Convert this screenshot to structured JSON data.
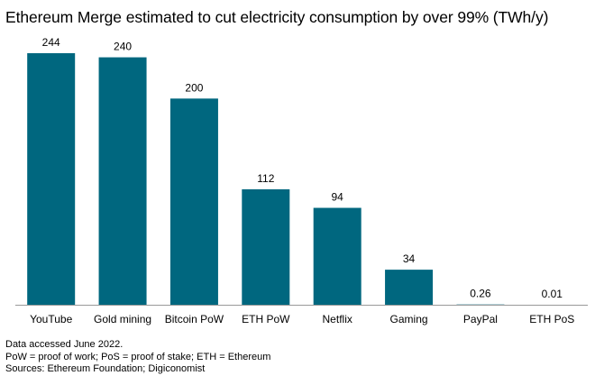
{
  "chart_data": {
    "type": "bar",
    "title": "Ethereum Merge estimated to cut electricity consumption by over 99% (TWh/y)",
    "categories": [
      "YouTube",
      "Gold mining",
      "Bitcoin PoW",
      "ETH PoW",
      "Netflix",
      "Gaming",
      "PayPal",
      "ETH PoS"
    ],
    "values": [
      244,
      240,
      200,
      112,
      94,
      34,
      0.26,
      0.01
    ],
    "data_labels": [
      "244",
      "240",
      "200",
      "112",
      "94",
      "34",
      "0.26",
      "0.01"
    ],
    "xlabel": "",
    "ylabel": "",
    "ylim": [
      0,
      244
    ],
    "grid": false,
    "legend": "none",
    "bar_color": "#00677F",
    "axis_color": "#9a9a9a"
  },
  "notes": {
    "line1": "Data accessed June 2022.",
    "line2": "PoW = proof of work; PoS = proof of stake; ETH = Ethereum",
    "line3": "Sources: Ethereum Foundation; Digiconomist"
  }
}
